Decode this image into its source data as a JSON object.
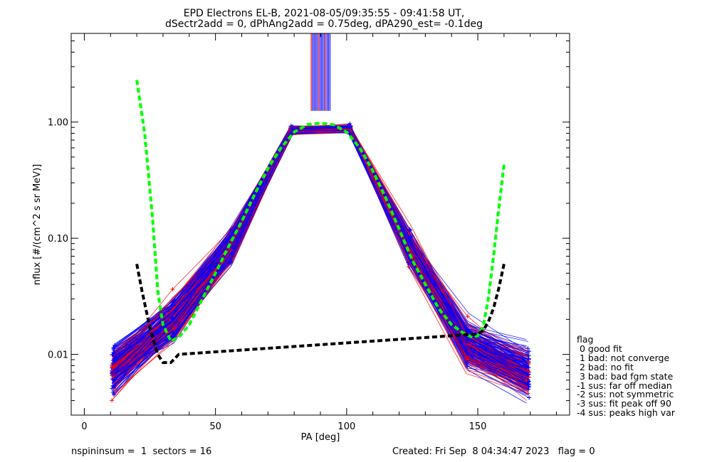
{
  "chart_data": {
    "type": "line",
    "title": "EPD Electrons EL-B, 2021-08-05/09:35:55 - 09:41:58 UT,",
    "subtitle": "dSectr2add = 0, dPhAng2add = 0.75deg, dPA290_est=  -0.1deg",
    "xlabel": "PA [deg]",
    "ylabel": "nflux [#/(cm^2 s sr MeV)]",
    "xlim": [
      -5,
      185
    ],
    "ylim": [
      0.003,
      5.8
    ],
    "yscale": "log",
    "xticks": [
      0,
      50,
      100,
      150
    ],
    "xtick_labels": [
      "0",
      "50",
      "100",
      "150"
    ],
    "yticks": [
      0.01,
      0.1,
      1.0
    ],
    "ytick_labels": [
      "0.01",
      "0.10",
      "1.00"
    ],
    "grid": false,
    "colors": {
      "blue": "#0000ff",
      "red": "#ff0000",
      "green": "#00ff00",
      "black": "#000000"
    },
    "pa_bins": [
      11,
      34,
      56,
      79,
      101,
      124,
      146,
      169
    ],
    "series": [
      {
        "color": "green",
        "style": "dashed",
        "x": [
          20,
          23,
          26,
          28,
          30,
          33,
          36,
          40,
          45,
          50,
          55,
          60,
          65,
          70,
          75,
          80,
          85,
          90,
          95,
          100,
          105,
          110,
          115,
          120,
          125,
          130,
          135,
          140,
          145,
          148,
          150,
          152,
          154,
          156,
          158,
          160
        ],
        "y": [
          2.3,
          0.8,
          0.15,
          0.035,
          0.018,
          0.013,
          0.014,
          0.018,
          0.03,
          0.05,
          0.085,
          0.14,
          0.24,
          0.4,
          0.6,
          0.82,
          0.95,
          0.98,
          0.95,
          0.82,
          0.6,
          0.38,
          0.22,
          0.12,
          0.065,
          0.04,
          0.025,
          0.018,
          0.015,
          0.014,
          0.0145,
          0.017,
          0.03,
          0.07,
          0.18,
          0.43
        ]
      },
      {
        "color": "black",
        "style": "dashed",
        "x": [
          20,
          22,
          25,
          28,
          30,
          33,
          36,
          150,
          152,
          154,
          156,
          158,
          160
        ],
        "y": [
          0.06,
          0.035,
          0.017,
          0.01,
          0.0085,
          0.0085,
          0.01,
          0.015,
          0.016,
          0.019,
          0.025,
          0.037,
          0.06
        ]
      }
    ]
  },
  "legend": {
    "title": "flag",
    "items": [
      " 0 good fit",
      " 1 bad: not converge",
      " 2 bad: no fit",
      " 3 bad: bad fgm state",
      "-1 sus: far off median",
      "-2 sus: not symmetric",
      "-3 sus: fit peak off 90",
      "-4 sus: peaks high var"
    ]
  },
  "footer": {
    "left": "nspininsum =  1  sectors = 16",
    "right": "Created: Fri Sep  8 04:34:47 2023   flag = 0"
  }
}
